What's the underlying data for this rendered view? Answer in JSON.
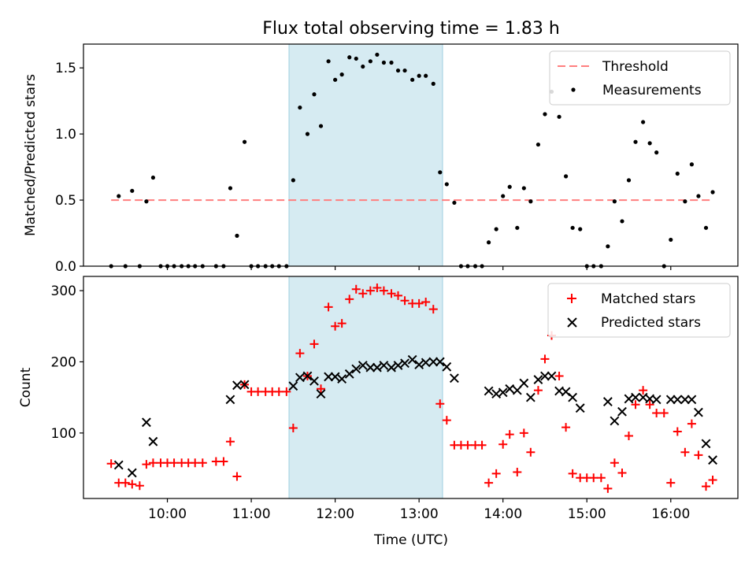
{
  "title": "Flux total observing time = 1.83 h",
  "xlabel": "Time (UTC)",
  "x_ticks": [
    "10:00",
    "11:00",
    "12:00",
    "13:00",
    "14:00",
    "15:00",
    "16:00"
  ],
  "x_tick_hours": [
    10,
    11,
    12,
    13,
    14,
    15,
    16
  ],
  "xlim": [
    9.0,
    16.8
  ],
  "highlight_span": [
    11.45,
    13.28
  ],
  "colors": {
    "threshold": "#ff7f7f",
    "measurements": "#000000",
    "matched": "#ff0000",
    "predicted": "#000000",
    "highlight": "#add8e6"
  },
  "chart_data": [
    {
      "type": "scatter",
      "ylabel": "Matched/Predicted stars",
      "ylim": [
        0,
        1.68
      ],
      "y_ticks": [
        "0.0",
        "0.5",
        "1.0",
        "1.5"
      ],
      "y_tick_values": [
        0,
        0.5,
        1.0,
        1.5
      ],
      "legend_position": "top-right",
      "threshold": {
        "name": "Threshold",
        "y": 0.5,
        "x_start": 9.33,
        "x_end": 16.47
      },
      "series": [
        {
          "name": "Measurements",
          "points": [
            [
              9.33,
              0
            ],
            [
              9.42,
              0.53
            ],
            [
              9.5,
              0
            ],
            [
              9.58,
              0.57
            ],
            [
              9.67,
              0
            ],
            [
              9.75,
              0.49
            ],
            [
              9.83,
              0.67
            ],
            [
              9.92,
              0
            ],
            [
              10.0,
              0
            ],
            [
              10.08,
              0
            ],
            [
              10.17,
              0
            ],
            [
              10.25,
              0
            ],
            [
              10.33,
              0
            ],
            [
              10.42,
              0
            ],
            [
              10.58,
              0
            ],
            [
              10.67,
              0
            ],
            [
              10.75,
              0.59
            ],
            [
              10.83,
              0.23
            ],
            [
              10.92,
              0.94
            ],
            [
              11.0,
              0
            ],
            [
              11.08,
              0
            ],
            [
              11.17,
              0
            ],
            [
              11.25,
              0
            ],
            [
              11.33,
              0
            ],
            [
              11.42,
              0
            ],
            [
              11.5,
              0.65
            ],
            [
              11.58,
              1.2
            ],
            [
              11.67,
              1.0
            ],
            [
              11.75,
              1.3
            ],
            [
              11.83,
              1.06
            ],
            [
              11.92,
              1.55
            ],
            [
              12.0,
              1.41
            ],
            [
              12.08,
              1.45
            ],
            [
              12.17,
              1.58
            ],
            [
              12.25,
              1.57
            ],
            [
              12.33,
              1.51
            ],
            [
              12.42,
              1.55
            ],
            [
              12.5,
              1.6
            ],
            [
              12.58,
              1.54
            ],
            [
              12.67,
              1.54
            ],
            [
              12.75,
              1.48
            ],
            [
              12.83,
              1.48
            ],
            [
              12.92,
              1.41
            ],
            [
              13.0,
              1.44
            ],
            [
              13.08,
              1.44
            ],
            [
              13.17,
              1.38
            ],
            [
              13.25,
              0.71
            ],
            [
              13.33,
              0.62
            ],
            [
              13.42,
              0.48
            ],
            [
              13.5,
              0
            ],
            [
              13.58,
              0
            ],
            [
              13.67,
              0
            ],
            [
              13.75,
              0
            ],
            [
              13.83,
              0.18
            ],
            [
              13.92,
              0.28
            ],
            [
              14.0,
              0.53
            ],
            [
              14.08,
              0.6
            ],
            [
              14.17,
              0.29
            ],
            [
              14.25,
              0.59
            ],
            [
              14.33,
              0.49
            ],
            [
              14.42,
              0.92
            ],
            [
              14.5,
              1.15
            ],
            [
              14.58,
              1.32
            ],
            [
              14.67,
              1.13
            ],
            [
              14.75,
              0.68
            ],
            [
              14.83,
              0.29
            ],
            [
              14.92,
              0.28
            ],
            [
              15.0,
              0
            ],
            [
              15.08,
              0
            ],
            [
              15.17,
              0
            ],
            [
              15.25,
              0.15
            ],
            [
              15.33,
              0.49
            ],
            [
              15.42,
              0.34
            ],
            [
              15.5,
              0.65
            ],
            [
              15.58,
              0.94
            ],
            [
              15.67,
              1.09
            ],
            [
              15.75,
              0.93
            ],
            [
              15.83,
              0.86
            ],
            [
              15.92,
              0
            ],
            [
              16.0,
              0.2
            ],
            [
              16.08,
              0.7
            ],
            [
              16.17,
              0.49
            ],
            [
              16.25,
              0.77
            ],
            [
              16.33,
              0.53
            ],
            [
              16.42,
              0.29
            ],
            [
              16.5,
              0.56
            ]
          ]
        }
      ]
    },
    {
      "type": "scatter",
      "ylabel": "Count",
      "ylim": [
        8,
        320
      ],
      "y_ticks": [
        "100",
        "200",
        "300"
      ],
      "y_tick_values": [
        100,
        200,
        300
      ],
      "legend_position": "top-right",
      "series": [
        {
          "name": "Matched stars",
          "marker": "plus",
          "points": [
            [
              9.33,
              57
            ],
            [
              9.42,
              30
            ],
            [
              9.5,
              30
            ],
            [
              9.58,
              28
            ],
            [
              9.67,
              26
            ],
            [
              9.75,
              56
            ],
            [
              9.83,
              58
            ],
            [
              9.92,
              58
            ],
            [
              10.0,
              58
            ],
            [
              10.08,
              58
            ],
            [
              10.17,
              58
            ],
            [
              10.25,
              58
            ],
            [
              10.33,
              58
            ],
            [
              10.42,
              58
            ],
            [
              10.58,
              60
            ],
            [
              10.67,
              60
            ],
            [
              10.75,
              88
            ],
            [
              10.83,
              39
            ],
            [
              10.92,
              168
            ],
            [
              11.0,
              158
            ],
            [
              11.08,
              158
            ],
            [
              11.17,
              158
            ],
            [
              11.25,
              158
            ],
            [
              11.33,
              158
            ],
            [
              11.42,
              158
            ],
            [
              11.5,
              107
            ],
            [
              11.58,
              212
            ],
            [
              11.67,
              180
            ],
            [
              11.75,
              225
            ],
            [
              11.83,
              162
            ],
            [
              11.92,
              277
            ],
            [
              12.0,
              250
            ],
            [
              12.08,
              254
            ],
            [
              12.17,
              288
            ],
            [
              12.25,
              302
            ],
            [
              12.33,
              296
            ],
            [
              12.42,
              300
            ],
            [
              12.5,
              304
            ],
            [
              12.58,
              300
            ],
            [
              12.67,
              296
            ],
            [
              12.75,
              293
            ],
            [
              12.83,
              286
            ],
            [
              12.92,
              282
            ],
            [
              13.0,
              282
            ],
            [
              13.08,
              284
            ],
            [
              13.17,
              274
            ],
            [
              13.25,
              141
            ],
            [
              13.33,
              118
            ],
            [
              13.42,
              83
            ],
            [
              13.5,
              83
            ],
            [
              13.58,
              83
            ],
            [
              13.67,
              83
            ],
            [
              13.75,
              83
            ],
            [
              13.83,
              30
            ],
            [
              13.92,
              43
            ],
            [
              14.0,
              84
            ],
            [
              14.08,
              98
            ],
            [
              14.17,
              45
            ],
            [
              14.25,
              100
            ],
            [
              14.33,
              73
            ],
            [
              14.42,
              160
            ],
            [
              14.5,
              204
            ],
            [
              14.58,
              237
            ],
            [
              14.67,
              180
            ],
            [
              14.75,
              108
            ],
            [
              14.83,
              43
            ],
            [
              14.92,
              37
            ],
            [
              15.0,
              37
            ],
            [
              15.08,
              37
            ],
            [
              15.17,
              37
            ],
            [
              15.25,
              22
            ],
            [
              15.33,
              58
            ],
            [
              15.42,
              44
            ],
            [
              15.5,
              96
            ],
            [
              15.58,
              140
            ],
            [
              15.67,
              160
            ],
            [
              15.75,
              140
            ],
            [
              15.83,
              128
            ],
            [
              15.92,
              128
            ],
            [
              16.0,
              30
            ],
            [
              16.08,
              102
            ],
            [
              16.17,
              73
            ],
            [
              16.25,
              113
            ],
            [
              16.33,
              69
            ],
            [
              16.42,
              25
            ],
            [
              16.5,
              34
            ]
          ]
        },
        {
          "name": "Predicted stars",
          "marker": "x",
          "points": [
            [
              9.42,
              55
            ],
            [
              9.58,
              44
            ],
            [
              9.75,
              115
            ],
            [
              9.83,
              88
            ],
            [
              10.75,
              147
            ],
            [
              10.83,
              167
            ],
            [
              10.92,
              168
            ],
            [
              11.5,
              166
            ],
            [
              11.58,
              178
            ],
            [
              11.67,
              180
            ],
            [
              11.75,
              173
            ],
            [
              11.83,
              155
            ],
            [
              11.92,
              179
            ],
            [
              12.0,
              179
            ],
            [
              12.08,
              176
            ],
            [
              12.17,
              183
            ],
            [
              12.25,
              190
            ],
            [
              12.33,
              195
            ],
            [
              12.42,
              192
            ],
            [
              12.5,
              192
            ],
            [
              12.58,
              195
            ],
            [
              12.67,
              192
            ],
            [
              12.75,
              195
            ],
            [
              12.83,
              198
            ],
            [
              12.92,
              203
            ],
            [
              13.0,
              196
            ],
            [
              13.08,
              199
            ],
            [
              13.17,
              200
            ],
            [
              13.25,
              200
            ],
            [
              13.33,
              193
            ],
            [
              13.42,
              177
            ],
            [
              13.83,
              159
            ],
            [
              13.92,
              155
            ],
            [
              14.0,
              157
            ],
            [
              14.08,
              162
            ],
            [
              14.17,
              160
            ],
            [
              14.25,
              170
            ],
            [
              14.33,
              150
            ],
            [
              14.42,
              175
            ],
            [
              14.5,
              180
            ],
            [
              14.58,
              180
            ],
            [
              14.67,
              159
            ],
            [
              14.75,
              158
            ],
            [
              14.83,
              150
            ],
            [
              14.92,
              135
            ],
            [
              15.25,
              144
            ],
            [
              15.33,
              117
            ],
            [
              15.42,
              130
            ],
            [
              15.5,
              148
            ],
            [
              15.58,
              150
            ],
            [
              15.67,
              150
            ],
            [
              15.75,
              148
            ],
            [
              15.83,
              147
            ],
            [
              16.0,
              147
            ],
            [
              16.08,
              147
            ],
            [
              16.17,
              147
            ],
            [
              16.25,
              147
            ],
            [
              16.33,
              129
            ],
            [
              16.42,
              85
            ],
            [
              16.5,
              62
            ]
          ]
        }
      ]
    }
  ]
}
